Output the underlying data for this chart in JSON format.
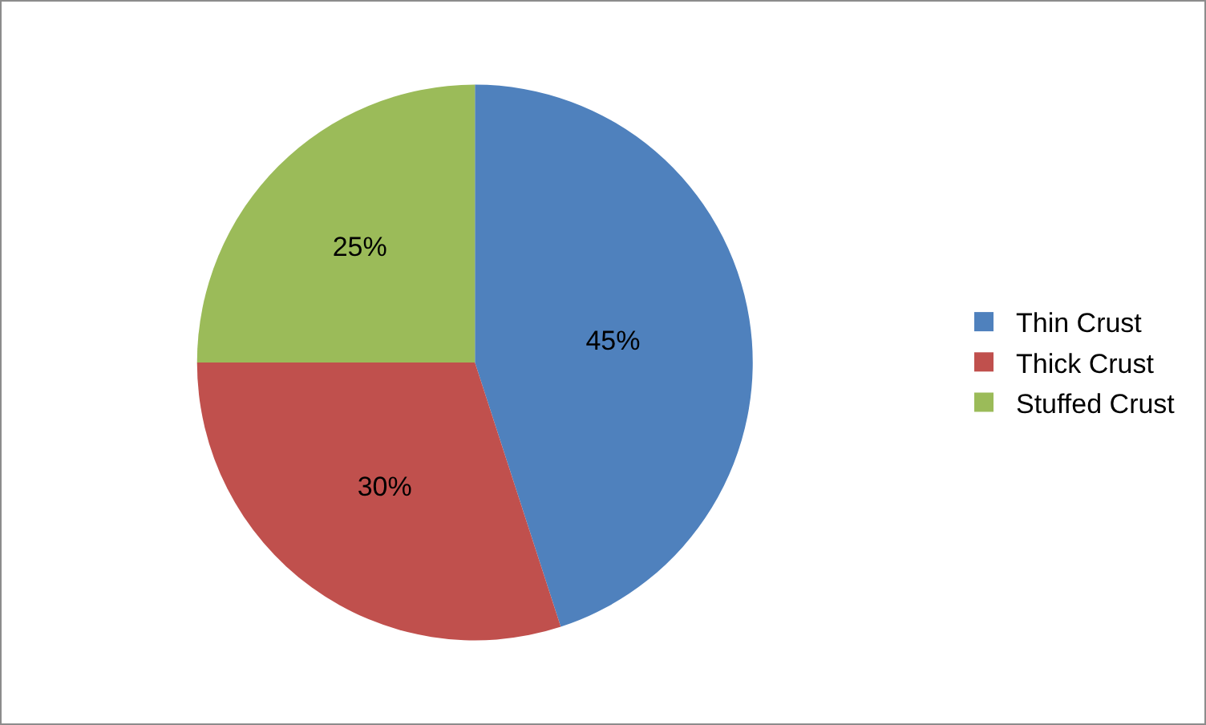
{
  "chart_data": {
    "type": "pie",
    "categories": [
      "Thin Crust",
      "Thick Crust",
      "Stuffed Crust"
    ],
    "values": [
      45,
      30,
      25
    ],
    "colors": [
      "#4f81bd",
      "#c0504d",
      "#9bbb59"
    ],
    "value_labels": [
      "45%",
      "30%",
      "25%"
    ],
    "legend": "right"
  }
}
